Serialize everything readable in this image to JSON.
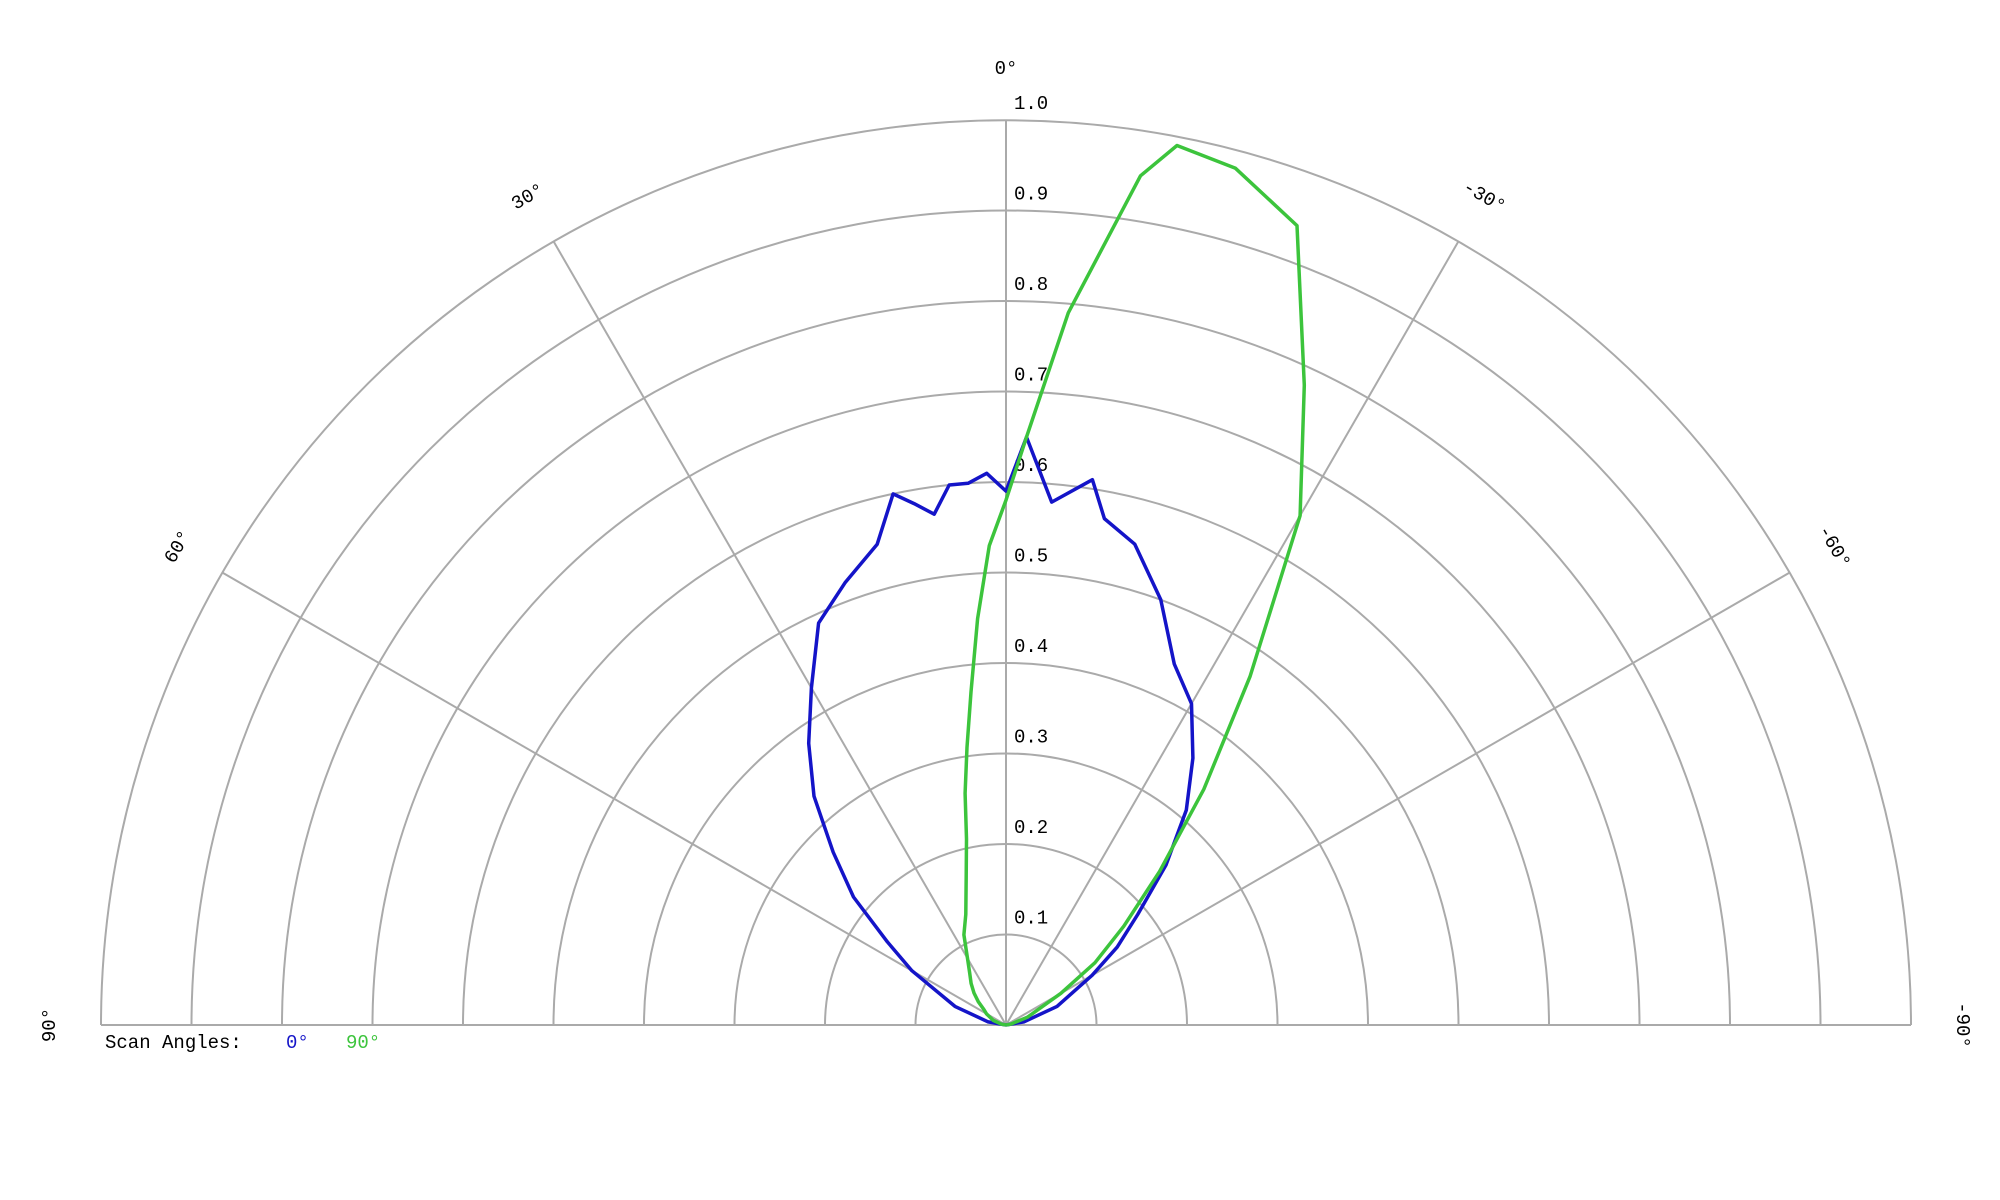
{
  "chart_data": {
    "type": "polar",
    "legend_title": "Scan Angles:",
    "xlim": [
      90,
      -90
    ],
    "xticks": [
      {
        "value": 90,
        "label": "90°"
      },
      {
        "value": 60,
        "label": "60°"
      },
      {
        "value": 30,
        "label": "30°"
      },
      {
        "value": 0,
        "label": "0°"
      },
      {
        "value": -30,
        "label": "-30°"
      },
      {
        "value": -60,
        "label": "-60°"
      },
      {
        "value": -90,
        "label": "-90°"
      }
    ],
    "rlim": [
      0,
      1
    ],
    "rticks": [
      0.1,
      0.2,
      0.3,
      0.4,
      0.5,
      0.6,
      0.7,
      0.8,
      0.9,
      {
        "value": 1,
        "label": "1.0"
      }
    ],
    "grid": true,
    "x": [
      90,
      80,
      70,
      60,
      55,
      50,
      45,
      40,
      35,
      30,
      25,
      20,
      15,
      12,
      10,
      8,
      6,
      4,
      2,
      0,
      -2,
      -5,
      -9,
      -11,
      -15,
      -20,
      -25,
      -30,
      -35,
      -40,
      -45,
      -50,
      -55,
      -60,
      -70,
      -80,
      -90
    ],
    "series": [
      {
        "name": "0°",
        "color": "#1414c8",
        "values": [
          0,
          0.02,
          0.06,
          0.12,
          0.16,
          0.22,
          0.27,
          0.33,
          0.38,
          0.43,
          0.49,
          0.52,
          0.55,
          0.6,
          0.585,
          0.57,
          0.6,
          0.6,
          0.61,
          0.59,
          0.65,
          0.58,
          0.61,
          0.57,
          0.55,
          0.5,
          0.44,
          0.41,
          0.36,
          0.31,
          0.25,
          0.19,
          0.15,
          0.11,
          0.06,
          0.02,
          0
        ]
      },
      {
        "name": "90°",
        "color": "#3cc43c",
        "values": [
          0,
          0.005,
          0.015,
          0.025,
          0.03,
          0.04,
          0.05,
          0.06,
          0.07,
          0.085,
          0.11,
          0.13,
          0.17,
          0.21,
          0.26,
          0.31,
          0.37,
          0.45,
          0.53,
          0.58,
          0.65,
          0.79,
          0.95,
          0.99,
          0.98,
          0.94,
          0.78,
          0.65,
          0.47,
          0.34,
          0.24,
          0.17,
          0.12,
          0.07,
          0.025,
          0.005,
          0
        ]
      }
    ]
  }
}
